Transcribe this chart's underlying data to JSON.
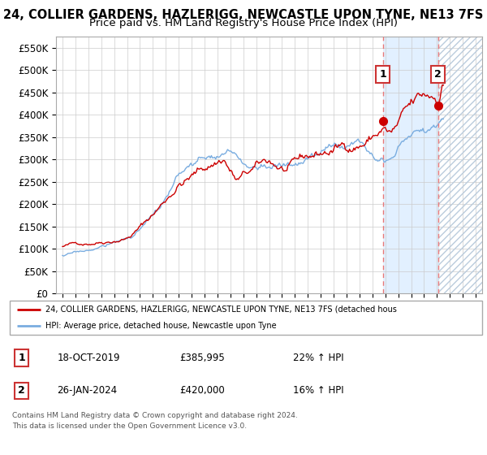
{
  "title": "24, COLLIER GARDENS, HAZLERIGG, NEWCASTLE UPON TYNE, NE13 7FS",
  "subtitle": "Price paid vs. HM Land Registry's House Price Index (HPI)",
  "ylabel_ticks": [
    0,
    50000,
    100000,
    150000,
    200000,
    250000,
    300000,
    350000,
    400000,
    450000,
    500000,
    550000
  ],
  "ylim": [
    0,
    575000
  ],
  "xlim_start": 1994.5,
  "xlim_end": 2027.5,
  "purchase1_date": 2019.8,
  "purchase1_price": 385995,
  "purchase2_date": 2024.08,
  "purchase2_price": 420000,
  "legend_line1": "24, COLLIER GARDENS, HAZLERIGG, NEWCASTLE UPON TYNE, NE13 7FS (detached hous",
  "legend_line2": "HPI: Average price, detached house, Newcastle upon Tyne",
  "table_row1": [
    "1",
    "18-OCT-2019",
    "£385,995",
    "22% ↑ HPI"
  ],
  "table_row2": [
    "2",
    "26-JAN-2024",
    "£420,000",
    "16% ↑ HPI"
  ],
  "footer1": "Contains HM Land Registry data © Crown copyright and database right 2024.",
  "footer2": "This data is licensed under the Open Government Licence v3.0.",
  "hpi_color": "#7aade0",
  "price_color": "#cc0000",
  "vline_color": "#e87878",
  "grid_color": "#cccccc",
  "bg_color": "#ffffff",
  "plot_bg": "#ffffff",
  "shade_color": "#ddeeff",
  "hatch_color": "#bbccdd",
  "title_fontsize": 10.5,
  "subtitle_fontsize": 9.5
}
